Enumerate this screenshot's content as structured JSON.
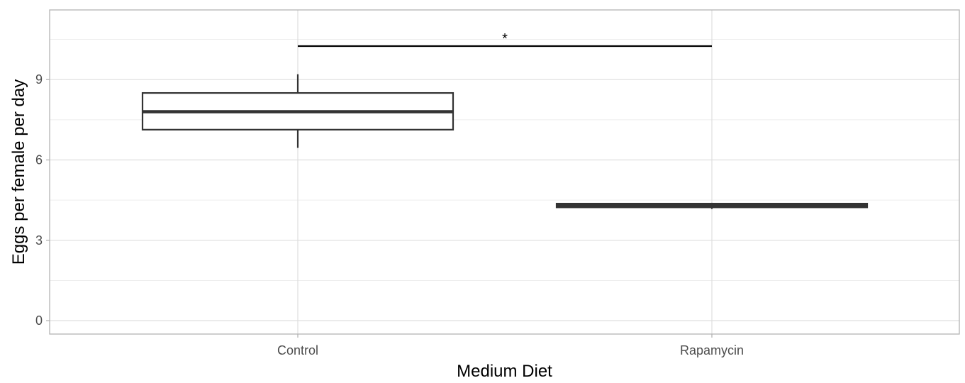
{
  "chart_data": {
    "type": "box",
    "title": "",
    "xlabel": "Medium Diet",
    "ylabel": "Eggs per female per day",
    "categories": [
      "Control",
      "Rapamycin"
    ],
    "ylim": [
      -0.5,
      11.6
    ],
    "yticks": [
      0,
      3,
      6,
      9
    ],
    "grid": true,
    "boxes": [
      {
        "category": "Control",
        "min": 6.45,
        "q1": 7.13,
        "median": 7.8,
        "q3": 8.5,
        "max": 9.2
      },
      {
        "category": "Rapamycin",
        "min": 4.17,
        "q1": 4.23,
        "median": 4.3,
        "q3": 4.37,
        "max": 4.4
      }
    ],
    "significance": {
      "from": "Control",
      "to": "Rapamycin",
      "y": 10.25,
      "label": "*"
    }
  },
  "colors": {
    "panel_border": "#b3b3b3",
    "grid_major": "#dedede",
    "grid_minor": "#eeeeee",
    "box_stroke": "#333333",
    "tick_label": "#4d4d4d",
    "axis_title": "#000000"
  }
}
